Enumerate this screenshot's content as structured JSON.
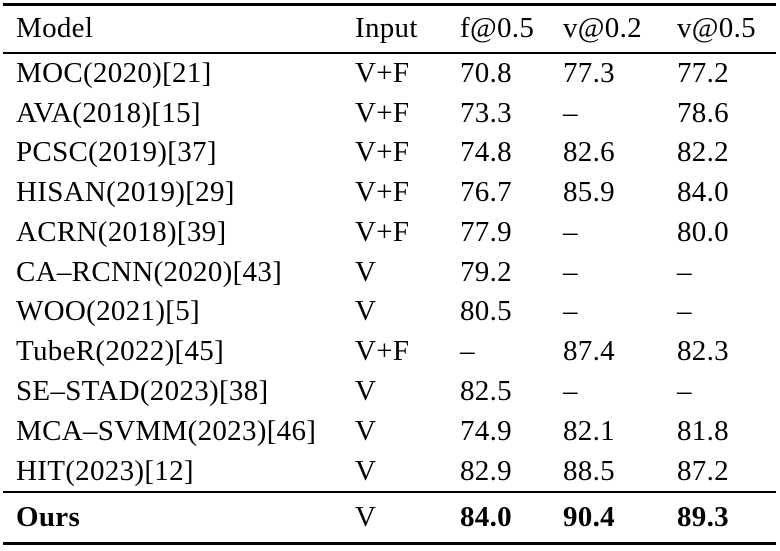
{
  "table": {
    "columns": [
      {
        "label": "Model"
      },
      {
        "label": "Input"
      },
      {
        "label": "f@0.5"
      },
      {
        "label": "v@0.2"
      },
      {
        "label": "v@0.5"
      }
    ],
    "rows": [
      {
        "model": "MOC(2020)[21]",
        "input": "V+F",
        "f05": "70.8",
        "v02": "77.3",
        "v05": "77.2"
      },
      {
        "model": "AVA(2018)[15]",
        "input": "V+F",
        "f05": "73.3",
        "v02": "–",
        "v05": "78.6"
      },
      {
        "model": "PCSC(2019)[37]",
        "input": "V+F",
        "f05": "74.8",
        "v02": "82.6",
        "v05": "82.2"
      },
      {
        "model": "HISAN(2019)[29]",
        "input": "V+F",
        "f05": "76.7",
        "v02": "85.9",
        "v05": "84.0"
      },
      {
        "model": "ACRN(2018)[39]",
        "input": "V+F",
        "f05": "77.9",
        "v02": "–",
        "v05": "80.0"
      },
      {
        "model": "CA–RCNN(2020)[43]",
        "input": "V",
        "f05": "79.2",
        "v02": "–",
        "v05": "–"
      },
      {
        "model": "WOO(2021)[5]",
        "input": "V",
        "f05": "80.5",
        "v02": "–",
        "v05": "–"
      },
      {
        "model": "TubeR(2022)[45]",
        "input": "V+F",
        "f05": "–",
        "v02": "87.4",
        "v05": "82.3"
      },
      {
        "model": "SE–STAD(2023)[38]",
        "input": "V",
        "f05": "82.5",
        "v02": "–",
        "v05": "–"
      },
      {
        "model": "MCA–SVMM(2023)[46]",
        "input": "V",
        "f05": "74.9",
        "v02": "82.1",
        "v05": "81.8"
      },
      {
        "model": "HIT(2023)[12]",
        "input": "V",
        "f05": "82.9",
        "v02": "88.5",
        "v05": "87.2"
      }
    ],
    "footer": {
      "model": "Ours",
      "input": "V",
      "f05": "84.0",
      "v02": "90.4",
      "v05": "89.3"
    }
  }
}
